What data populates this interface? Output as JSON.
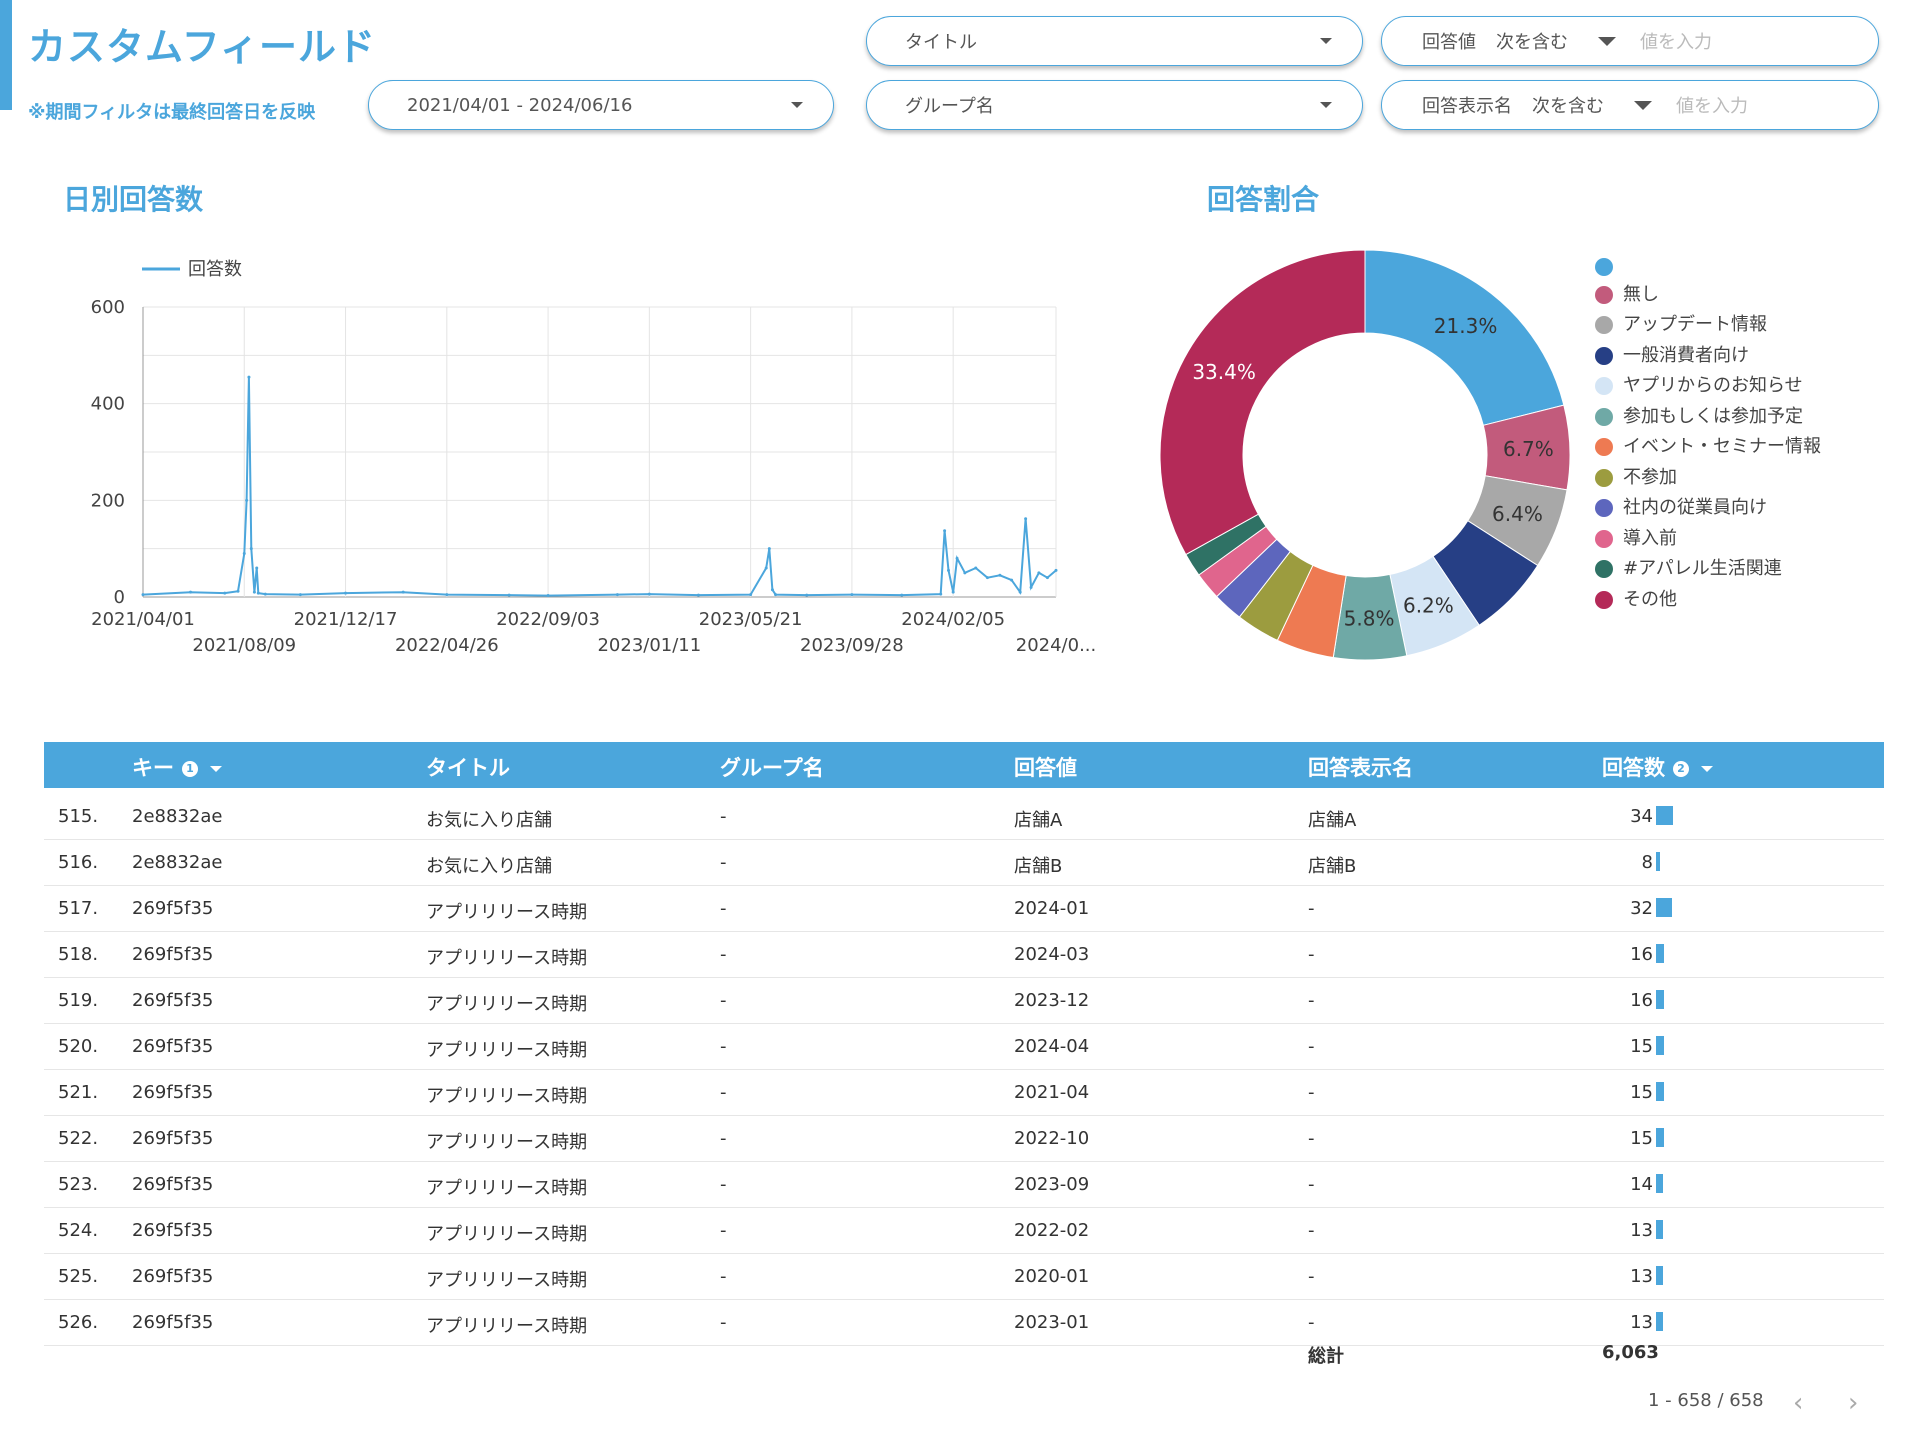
{
  "header": {
    "title": "カスタムフィールド",
    "note": "※期間フィルタは最終回答日を反映"
  },
  "filters": {
    "date_range": "2021/04/01 - 2024/06/16",
    "title_select": "タイトル",
    "group_select": "グループ名",
    "answer_value": {
      "label": "回答値",
      "operator": "次を含む",
      "placeholder": "値を入力"
    },
    "answer_display": {
      "label": "回答表示名",
      "operator": "次を含む",
      "placeholder": "値を入力"
    }
  },
  "line_section_title": "日別回答数",
  "pie_section_title": "回答割合",
  "colors": {
    "accent": "#4ba6dc"
  },
  "chart_data": [
    {
      "type": "line",
      "legend": [
        "回答数"
      ],
      "legend_position": "top-left",
      "grid": true,
      "ylim": [
        0,
        600
      ],
      "yticks": [
        "0",
        "200",
        "400",
        "600"
      ],
      "xticks_row1": [
        "2021/04/01",
        "2021/12/17",
        "2022/09/03",
        "2023/05/21",
        "2024/02/05"
      ],
      "xticks_row2": [
        "2021/08/09",
        "2022/04/26",
        "2023/01/11",
        "2023/09/28",
        "2024/0..."
      ],
      "series": [
        {
          "name": "回答数",
          "x": [
            "2021/04/01",
            "2021/06/01",
            "2021/07/15",
            "2021/08/01",
            "2021/08/09",
            "2021/08/12",
            "2021/08/15",
            "2021/08/18",
            "2021/08/22",
            "2021/08/25",
            "2021/08/27",
            "2021/09/05",
            "2021/10/20",
            "2021/12/17",
            "2022/03/01",
            "2022/04/26",
            "2022/07/15",
            "2022/09/03",
            "2022/12/01",
            "2023/01/11",
            "2023/03/15",
            "2023/05/21",
            "2023/06/10",
            "2023/06/14",
            "2023/06/18",
            "2023/06/22",
            "2023/08/01",
            "2023/09/28",
            "2023/12/01",
            "2024/01/20",
            "2024/01/25",
            "2024/01/30",
            "2024/02/05",
            "2024/02/10",
            "2024/02/20",
            "2024/03/05",
            "2024/03/20",
            "2024/04/05",
            "2024/04/20",
            "2024/05/01",
            "2024/05/08",
            "2024/05/15",
            "2024/05/25",
            "2024/06/05",
            "2024/06/16"
          ],
          "values": [
            5,
            10,
            8,
            12,
            90,
            200,
            455,
            100,
            10,
            60,
            8,
            6,
            5,
            8,
            10,
            5,
            4,
            3,
            5,
            6,
            4,
            5,
            60,
            100,
            15,
            5,
            4,
            5,
            4,
            6,
            137,
            55,
            10,
            80,
            50,
            60,
            40,
            45,
            35,
            10,
            162,
            20,
            50,
            40,
            55
          ]
        }
      ]
    },
    {
      "type": "pie",
      "donut": true,
      "legend_position": "right",
      "slices": [
        {
          "label": "",
          "value": 21.3,
          "color": "#4ba6dc",
          "show_label": "21.3%",
          "label_color": "#333333"
        },
        {
          "label": "無し",
          "value": 6.7,
          "color": "#c25b7c",
          "show_label": "6.7%",
          "label_color": "#333333"
        },
        {
          "label": "アップデート情報",
          "value": 6.4,
          "color": "#a8a8a8",
          "show_label": "6.4%",
          "label_color": "#333333"
        },
        {
          "label": "一般消費者向け",
          "value": 6.6,
          "color": "#263f85",
          "show_label": "",
          "label_color": "#ffffff"
        },
        {
          "label": "ヤプリからのお知らせ",
          "value": 6.2,
          "color": "#d4e5f5",
          "show_label": "6.2%",
          "label_color": "#333333"
        },
        {
          "label": "参加もしくは参加予定",
          "value": 5.8,
          "color": "#6fa9a6",
          "show_label": "5.8%",
          "label_color": "#333333"
        },
        {
          "label": "イベント・セミナー情報",
          "value": 4.6,
          "color": "#ee7a52",
          "show_label": "",
          "label_color": "#333333"
        },
        {
          "label": "不参加",
          "value": 3.5,
          "color": "#9c9c3f",
          "show_label": "",
          "label_color": "#333333"
        },
        {
          "label": "社内の従業員向け",
          "value": 2.4,
          "color": "#5d66bd",
          "show_label": "",
          "label_color": "#333333"
        },
        {
          "label": "導入前",
          "value": 2.2,
          "color": "#e0658d",
          "show_label": "",
          "label_color": "#333333"
        },
        {
          "label": "#アパレル生活関連",
          "value": 1.9,
          "color": "#2f7265",
          "show_label": "",
          "label_color": "#333333"
        },
        {
          "label": "その他",
          "value": 33.4,
          "color": "#b42a58",
          "show_label": "33.4%",
          "label_color": "#ffffff"
        }
      ]
    }
  ],
  "table": {
    "columns": {
      "key": "キー",
      "title": "タイトル",
      "group": "グループ名",
      "value": "回答値",
      "display": "回答表示名",
      "count": "回答数"
    },
    "key_info": "1",
    "count_info": "2",
    "rows": [
      {
        "idx": "515.",
        "key": "2e8832ae",
        "title": "お気に入り店舗",
        "group": "-",
        "value": "店舗A",
        "display": "店舗A",
        "count": "34",
        "bar": 34
      },
      {
        "idx": "516.",
        "key": "2e8832ae",
        "title": "お気に入り店舗",
        "group": "-",
        "value": "店舗B",
        "display": "店舗B",
        "count": "8",
        "bar": 8
      },
      {
        "idx": "517.",
        "key": "269f5f35",
        "title": "アプリリリース時期",
        "group": "-",
        "value": "2024-01",
        "display": "-",
        "count": "32",
        "bar": 32
      },
      {
        "idx": "518.",
        "key": "269f5f35",
        "title": "アプリリリース時期",
        "group": "-",
        "value": "2024-03",
        "display": "-",
        "count": "16",
        "bar": 16
      },
      {
        "idx": "519.",
        "key": "269f5f35",
        "title": "アプリリリース時期",
        "group": "-",
        "value": "2023-12",
        "display": "-",
        "count": "16",
        "bar": 16
      },
      {
        "idx": "520.",
        "key": "269f5f35",
        "title": "アプリリリース時期",
        "group": "-",
        "value": "2024-04",
        "display": "-",
        "count": "15",
        "bar": 15
      },
      {
        "idx": "521.",
        "key": "269f5f35",
        "title": "アプリリリース時期",
        "group": "-",
        "value": "2021-04",
        "display": "-",
        "count": "15",
        "bar": 15
      },
      {
        "idx": "522.",
        "key": "269f5f35",
        "title": "アプリリリース時期",
        "group": "-",
        "value": "2022-10",
        "display": "-",
        "count": "15",
        "bar": 15
      },
      {
        "idx": "523.",
        "key": "269f5f35",
        "title": "アプリリリース時期",
        "group": "-",
        "value": "2023-09",
        "display": "-",
        "count": "14",
        "bar": 14
      },
      {
        "idx": "524.",
        "key": "269f5f35",
        "title": "アプリリリース時期",
        "group": "-",
        "value": "2022-02",
        "display": "-",
        "count": "13",
        "bar": 13
      },
      {
        "idx": "525.",
        "key": "269f5f35",
        "title": "アプリリリース時期",
        "group": "-",
        "value": "2020-01",
        "display": "-",
        "count": "13",
        "bar": 13
      },
      {
        "idx": "526.",
        "key": "269f5f35",
        "title": "アプリリリース時期",
        "group": "-",
        "value": "2023-01",
        "display": "-",
        "count": "13",
        "bar": 13
      }
    ],
    "bar_max": 34,
    "total_label": "総計",
    "total_value": "6,063",
    "pager_text": "1 - 658 / 658"
  }
}
